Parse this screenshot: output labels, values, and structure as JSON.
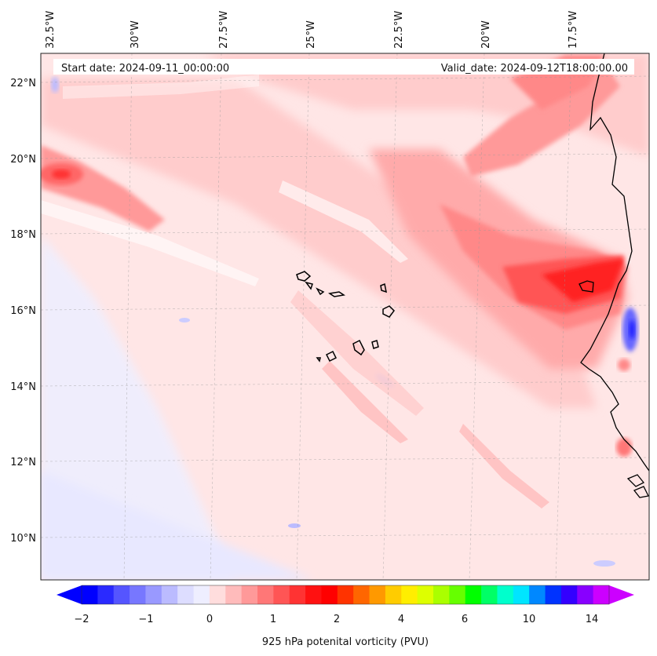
{
  "map": {
    "start_label": "Start date: 2024-09-11_00:00:00",
    "valid_label": "Valid_date: 2024-09-12T18:00:00.00",
    "lon_ticks": [
      "32.5°W",
      "30°W",
      "27.5°W",
      "25°W",
      "22.5°W",
      "20°W",
      "17.5°W"
    ],
    "lat_ticks": [
      "22°N",
      "20°N",
      "18°N",
      "16°N",
      "14°N",
      "12°N",
      "10°N"
    ],
    "colorbar_label": "925 hPa potenital vorticity (PVU)",
    "colorbar_ticks": [
      "−2",
      "−1",
      "0",
      "1",
      "2",
      "4",
      "6",
      "10",
      "14"
    ],
    "colorbar_colors": [
      "#0000ff",
      "#2a2aff",
      "#5555ff",
      "#7777ff",
      "#9999ff",
      "#bbbbff",
      "#ddddff",
      "#eeeeff",
      "#ffdddd",
      "#ffbbbb",
      "#ff9999",
      "#ff7777",
      "#ff5555",
      "#ff3333",
      "#ff1111",
      "#ff0000",
      "#ff3300",
      "#ff6600",
      "#ff9900",
      "#ffcc00",
      "#ffee00",
      "#ddff00",
      "#aaff00",
      "#66ff00",
      "#00ff00",
      "#00ff66",
      "#00ffcc",
      "#00e5ff",
      "#0088ff",
      "#0033ff",
      "#3300ff",
      "#8800ff",
      "#cc00ff"
    ],
    "colorbar_min_color": "#0000ff",
    "colorbar_max_color": "#cc00ff"
  }
}
